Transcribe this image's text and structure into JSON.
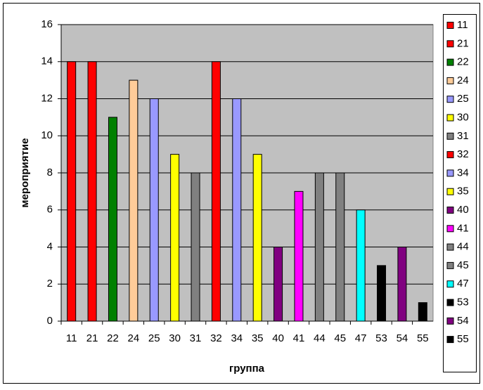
{
  "chart_data": {
    "type": "bar",
    "x_label": "группа",
    "y_label": "мероприятие",
    "categories": [
      "11",
      "21",
      "22",
      "24",
      "25",
      "30",
      "31",
      "32",
      "34",
      "35",
      "40",
      "41",
      "44",
      "45",
      "47",
      "53",
      "54",
      "55"
    ],
    "values": [
      14,
      14,
      11,
      13,
      12,
      9,
      8,
      14,
      12,
      9,
      4,
      7,
      8,
      8,
      6,
      3,
      4,
      1
    ],
    "colors": [
      "#FF0000",
      "#FF0000",
      "#008000",
      "#FFCC99",
      "#9999FF",
      "#FFFF00",
      "#808080",
      "#FF0000",
      "#9999FF",
      "#FFFF00",
      "#800080",
      "#FF00FF",
      "#808080",
      "#808080",
      "#00FFFF",
      "#000000",
      "#800080",
      "#000000"
    ],
    "ylim": [
      0,
      16
    ],
    "yticks": [
      0,
      2,
      4,
      6,
      8,
      10,
      12,
      14,
      16
    ],
    "grid": true,
    "legend": "right"
  }
}
